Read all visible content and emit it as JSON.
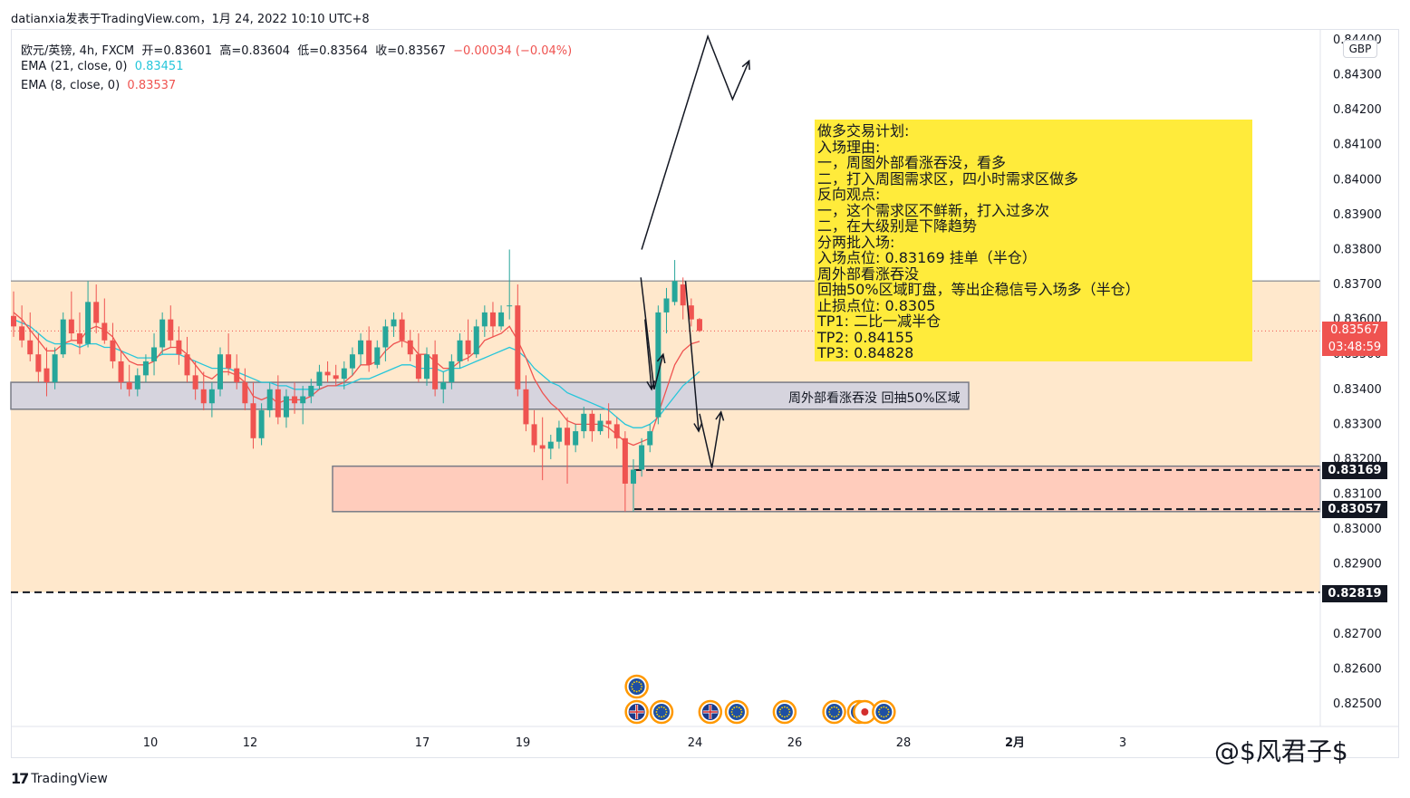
{
  "header": {
    "publish_line": "datianxia发表于TradingView.com，1月 24, 2022 10:10 UTC+8"
  },
  "legend": {
    "symbol_line_prefix": "欧元/英镑, 4h, FXCM",
    "open_label": "开=0.83601",
    "high_label": "高=0.83604",
    "low_label": "低=0.83564",
    "close_label": "收=0.83567",
    "change_label": "−0.00034 (−0.04%)",
    "ema21_label": "EMA (21, close, 0)",
    "ema21_value": "0.83451",
    "ema8_label": "EMA (8, close, 0)",
    "ema8_value": "0.83537"
  },
  "currency_badge": "GBP",
  "current_price": {
    "value": "0.83567",
    "countdown": "03:48:59"
  },
  "price_tags": [
    {
      "id": "entry",
      "value": "0.83169"
    },
    {
      "id": "support",
      "value": "0.83057"
    },
    {
      "id": "stop",
      "value": "0.82819"
    }
  ],
  "plan_box": {
    "lines": [
      "做多交易计划:",
      "入场理由:",
      "一，周图外部看涨吞没，看多",
      "二，打入周图需求区，四小时需求区做多",
      "反向观点:",
      "一，这个需求区不鲜新，打入过多次",
      "二，在大级别是下降趋势",
      "分两批入场:",
      "入场点位:  0.83169  挂单（半仓）",
      "周外部看涨吞没",
      "回抽50%区域盯盘，等出企稳信号入场多（半仓）",
      "止损点位:  0.8305",
      "TP1:  二比一减半仓",
      "TP2:  0.84155",
      "TP3: 0.84828"
    ]
  },
  "zone_label": "周外部看涨吞没 回抽50%区域",
  "footer": {
    "brand": "TradingView",
    "logo": "17"
  },
  "watermark": "@$风君子$",
  "colors": {
    "bull": "#26a69a",
    "bear": "#ef5350",
    "ema21": "#26c6da",
    "ema8": "#ef5350",
    "demand_zone_fill": "#ffe8cc",
    "mid_zone_fill": "#d6d4de",
    "entry_zone_fill": "#ffccbc",
    "plan_fill": "#ffeb3b"
  },
  "chart_data": {
    "type": "candlestick",
    "symbol": "EUR/GBP",
    "timeframe": "4h",
    "y_ticks": [
      "0.84400",
      "0.84300",
      "0.84200",
      "0.84100",
      "0.84000",
      "0.83900",
      "0.83800",
      "0.83700",
      "0.83600",
      "0.83500",
      "0.83400",
      "0.83300",
      "0.83200",
      "0.83100",
      "0.83000",
      "0.82900",
      "0.82700",
      "0.82600",
      "0.82500"
    ],
    "x_ticks": [
      "10",
      "12",
      "17",
      "19",
      "24",
      "26",
      "28",
      "2月",
      "3"
    ],
    "ylim": [
      0.8246,
      0.845
    ],
    "candles": [
      [
        0.8361,
        0.8368,
        0.8355,
        0.8358
      ],
      [
        0.8358,
        0.8364,
        0.8352,
        0.8354
      ],
      [
        0.8354,
        0.8362,
        0.8348,
        0.835
      ],
      [
        0.835,
        0.8356,
        0.8342,
        0.8345
      ],
      [
        0.8346,
        0.8352,
        0.8338,
        0.8342
      ],
      [
        0.8342,
        0.8352,
        0.834,
        0.835
      ],
      [
        0.835,
        0.8362,
        0.8349,
        0.836
      ],
      [
        0.836,
        0.8368,
        0.8354,
        0.8356
      ],
      [
        0.8356,
        0.8362,
        0.835,
        0.8353
      ],
      [
        0.8353,
        0.8371,
        0.8352,
        0.8365
      ],
      [
        0.8365,
        0.837,
        0.8356,
        0.8359
      ],
      [
        0.8359,
        0.8366,
        0.8353,
        0.8354
      ],
      [
        0.8354,
        0.8359,
        0.8346,
        0.8348
      ],
      [
        0.8348,
        0.8351,
        0.834,
        0.8342
      ],
      [
        0.8342,
        0.8347,
        0.8338,
        0.834
      ],
      [
        0.834,
        0.8346,
        0.8338,
        0.8344
      ],
      [
        0.8344,
        0.835,
        0.8342,
        0.8348
      ],
      [
        0.8348,
        0.8356,
        0.8344,
        0.8352
      ],
      [
        0.8352,
        0.8362,
        0.835,
        0.836
      ],
      [
        0.836,
        0.8364,
        0.8352,
        0.8354
      ],
      [
        0.8354,
        0.8358,
        0.8347,
        0.835
      ],
      [
        0.835,
        0.8355,
        0.8342,
        0.8344
      ],
      [
        0.8344,
        0.8348,
        0.8337,
        0.834
      ],
      [
        0.834,
        0.8345,
        0.8334,
        0.8336
      ],
      [
        0.8336,
        0.8342,
        0.8332,
        0.834
      ],
      [
        0.834,
        0.8352,
        0.8338,
        0.835
      ],
      [
        0.835,
        0.8356,
        0.8344,
        0.8346
      ],
      [
        0.8346,
        0.835,
        0.834,
        0.8342
      ],
      [
        0.8342,
        0.8346,
        0.8334,
        0.8336
      ],
      [
        0.8336,
        0.8342,
        0.8323,
        0.8326
      ],
      [
        0.8326,
        0.8336,
        0.8324,
        0.8334
      ],
      [
        0.8334,
        0.8342,
        0.8332,
        0.834
      ],
      [
        0.834,
        0.8344,
        0.833,
        0.8332
      ],
      [
        0.8332,
        0.834,
        0.8329,
        0.8338
      ],
      [
        0.8338,
        0.8342,
        0.8333,
        0.8336
      ],
      [
        0.8336,
        0.8341,
        0.833,
        0.8338
      ],
      [
        0.8338,
        0.8343,
        0.8336,
        0.8341
      ],
      [
        0.8341,
        0.8347,
        0.834,
        0.8345
      ],
      [
        0.8345,
        0.8348,
        0.8342,
        0.8344
      ],
      [
        0.8344,
        0.8347,
        0.8341,
        0.8343
      ],
      [
        0.8343,
        0.8348,
        0.834,
        0.8346
      ],
      [
        0.8346,
        0.8352,
        0.8344,
        0.835
      ],
      [
        0.835,
        0.8356,
        0.8347,
        0.8354
      ],
      [
        0.8354,
        0.8358,
        0.8345,
        0.8347
      ],
      [
        0.8347,
        0.8354,
        0.8346,
        0.8352
      ],
      [
        0.8352,
        0.836,
        0.8348,
        0.8358
      ],
      [
        0.8358,
        0.8362,
        0.8355,
        0.836
      ],
      [
        0.836,
        0.8362,
        0.8352,
        0.8354
      ],
      [
        0.8354,
        0.8357,
        0.8348,
        0.835
      ],
      [
        0.835,
        0.8356,
        0.8342,
        0.8343
      ],
      [
        0.8343,
        0.8352,
        0.8341,
        0.835
      ],
      [
        0.835,
        0.8354,
        0.8338,
        0.834
      ],
      [
        0.834,
        0.8345,
        0.8336,
        0.8342
      ],
      [
        0.8342,
        0.835,
        0.834,
        0.8348
      ],
      [
        0.8348,
        0.8356,
        0.8346,
        0.8354
      ],
      [
        0.8354,
        0.836,
        0.8348,
        0.835
      ],
      [
        0.835,
        0.836,
        0.8349,
        0.8358
      ],
      [
        0.8358,
        0.8364,
        0.8355,
        0.8362
      ],
      [
        0.8362,
        0.8365,
        0.8355,
        0.8358
      ],
      [
        0.8358,
        0.8364,
        0.8357,
        0.8362
      ],
      [
        0.8364,
        0.838,
        0.836,
        0.8364
      ],
      [
        0.8364,
        0.837,
        0.8338,
        0.834
      ],
      [
        0.834,
        0.8344,
        0.8328,
        0.833
      ],
      [
        0.833,
        0.8334,
        0.8322,
        0.8324
      ],
      [
        0.8324,
        0.8332,
        0.8314,
        0.8323
      ],
      [
        0.8323,
        0.8327,
        0.832,
        0.8325
      ],
      [
        0.8325,
        0.8331,
        0.8323,
        0.8329
      ],
      [
        0.8329,
        0.8332,
        0.8313,
        0.8324
      ],
      [
        0.8324,
        0.833,
        0.8322,
        0.8328
      ],
      [
        0.8328,
        0.8335,
        0.8326,
        0.8333
      ],
      [
        0.8333,
        0.8334,
        0.8325,
        0.8328
      ],
      [
        0.8328,
        0.8333,
        0.8327,
        0.8331
      ],
      [
        0.8331,
        0.8336,
        0.8326,
        0.833
      ],
      [
        0.833,
        0.8332,
        0.8323,
        0.8326
      ],
      [
        0.8326,
        0.8328,
        0.8305,
        0.8313
      ],
      [
        0.8313,
        0.832,
        0.8305,
        0.8317
      ],
      [
        0.8317,
        0.8326,
        0.8315,
        0.8324
      ],
      [
        0.8324,
        0.833,
        0.8322,
        0.8328
      ],
      [
        0.8332,
        0.8364,
        0.833,
        0.8362
      ],
      [
        0.8362,
        0.8369,
        0.8356,
        0.8366
      ],
      [
        0.8365,
        0.8377,
        0.8364,
        0.8371
      ],
      [
        0.837,
        0.8372,
        0.836,
        0.8364
      ],
      [
        0.8364,
        0.8366,
        0.8358,
        0.836
      ],
      [
        0.83601,
        0.83604,
        0.83564,
        0.83567
      ]
    ],
    "ema21": [
      0.836,
      0.8359,
      0.8358,
      0.8356,
      0.8354,
      0.8353,
      0.8353,
      0.8353,
      0.8352,
      0.8353,
      0.8353,
      0.8352,
      0.8352,
      0.8351,
      0.835,
      0.8349,
      0.8349,
      0.8349,
      0.835,
      0.835,
      0.835,
      0.8349,
      0.8348,
      0.8347,
      0.8346,
      0.8346,
      0.8346,
      0.8345,
      0.8344,
      0.8343,
      0.8342,
      0.8342,
      0.8341,
      0.8341,
      0.834,
      0.834,
      0.834,
      0.834,
      0.8341,
      0.8341,
      0.8341,
      0.8342,
      0.8343,
      0.8343,
      0.8344,
      0.8345,
      0.8346,
      0.8347,
      0.8347,
      0.8346,
      0.8346,
      0.8346,
      0.8345,
      0.8346,
      0.8346,
      0.8347,
      0.8348,
      0.8349,
      0.835,
      0.8351,
      0.8352,
      0.8351,
      0.8349,
      0.8346,
      0.8344,
      0.8342,
      0.8341,
      0.8339,
      0.8338,
      0.8337,
      0.8336,
      0.8335,
      0.8334,
      0.8332,
      0.833,
      0.8329,
      0.8329,
      0.833,
      0.8332,
      0.8335,
      0.8338,
      0.8341,
      0.8343,
      0.83451
    ],
    "ema8": [
      0.8362,
      0.836,
      0.8357,
      0.8354,
      0.8351,
      0.8351,
      0.8353,
      0.8354,
      0.8354,
      0.8357,
      0.8358,
      0.8357,
      0.8355,
      0.8351,
      0.8348,
      0.8347,
      0.8347,
      0.8348,
      0.8351,
      0.8352,
      0.8352,
      0.835,
      0.8347,
      0.8344,
      0.8343,
      0.8345,
      0.8345,
      0.8344,
      0.8342,
      0.8338,
      0.8337,
      0.8338,
      0.8336,
      0.8337,
      0.8337,
      0.8337,
      0.8338,
      0.834,
      0.8341,
      0.8341,
      0.8342,
      0.8344,
      0.8347,
      0.8347,
      0.8348,
      0.8351,
      0.8353,
      0.8354,
      0.8353,
      0.835,
      0.835,
      0.8348,
      0.8346,
      0.8346,
      0.8348,
      0.8349,
      0.8351,
      0.8354,
      0.8355,
      0.8356,
      0.8358,
      0.8354,
      0.8349,
      0.8343,
      0.8339,
      0.8336,
      0.8334,
      0.8331,
      0.833,
      0.833,
      0.833,
      0.833,
      0.8329,
      0.8327,
      0.8325,
      0.8324,
      0.8325,
      0.8326,
      0.8333,
      0.834,
      0.8347,
      0.8351,
      0.8353,
      0.83537
    ],
    "zones": [
      {
        "name": "demand_zone",
        "top": 0.8371,
        "bottom": 0.82819
      },
      {
        "name": "mid_zone",
        "top": 0.8342,
        "bottom": 0.83343
      },
      {
        "name": "entry_zone",
        "top": 0.8318,
        "bottom": 0.8305
      }
    ],
    "levels": [
      0.83169,
      0.83057,
      0.82819
    ],
    "projection_paths": [
      [
        [
          83,
          0.8333
        ],
        [
          84.5,
          0.83175
        ],
        [
          85.6,
          0.83335
        ]
      ],
      [
        [
          76,
          0.838
        ],
        [
          84,
          0.8441
        ],
        [
          87,
          0.8423
        ],
        [
          89,
          0.8434
        ]
      ],
      [
        [
          75.9,
          0.8372
        ],
        [
          77.5,
          0.834
        ],
        [
          78.6,
          0.835
        ]
      ],
      [
        [
          76.4,
          0.836
        ],
        [
          77.2,
          0.834
        ]
      ],
      [
        [
          81.3,
          0.8371
        ],
        [
          82.9,
          0.8328
        ]
      ]
    ],
    "events": [
      {
        "x": 75.4,
        "row": 0,
        "kind": "eu"
      },
      {
        "x": 75.4,
        "row": 1,
        "kind": "uk"
      },
      {
        "x": 78.4,
        "row": 1,
        "kind": "eu"
      },
      {
        "x": 84.3,
        "row": 1,
        "kind": "uk"
      },
      {
        "x": 87.5,
        "row": 1,
        "kind": "eu"
      },
      {
        "x": 93.3,
        "row": 1,
        "kind": "eu"
      },
      {
        "x": 99.3,
        "row": 1,
        "kind": "eu"
      },
      {
        "x": 102.3,
        "row": 1,
        "kind": "eu"
      },
      {
        "x": 103.0,
        "row": 1,
        "kind": "jp"
      },
      {
        "x": 105.3,
        "row": 1,
        "kind": "eu"
      }
    ]
  }
}
